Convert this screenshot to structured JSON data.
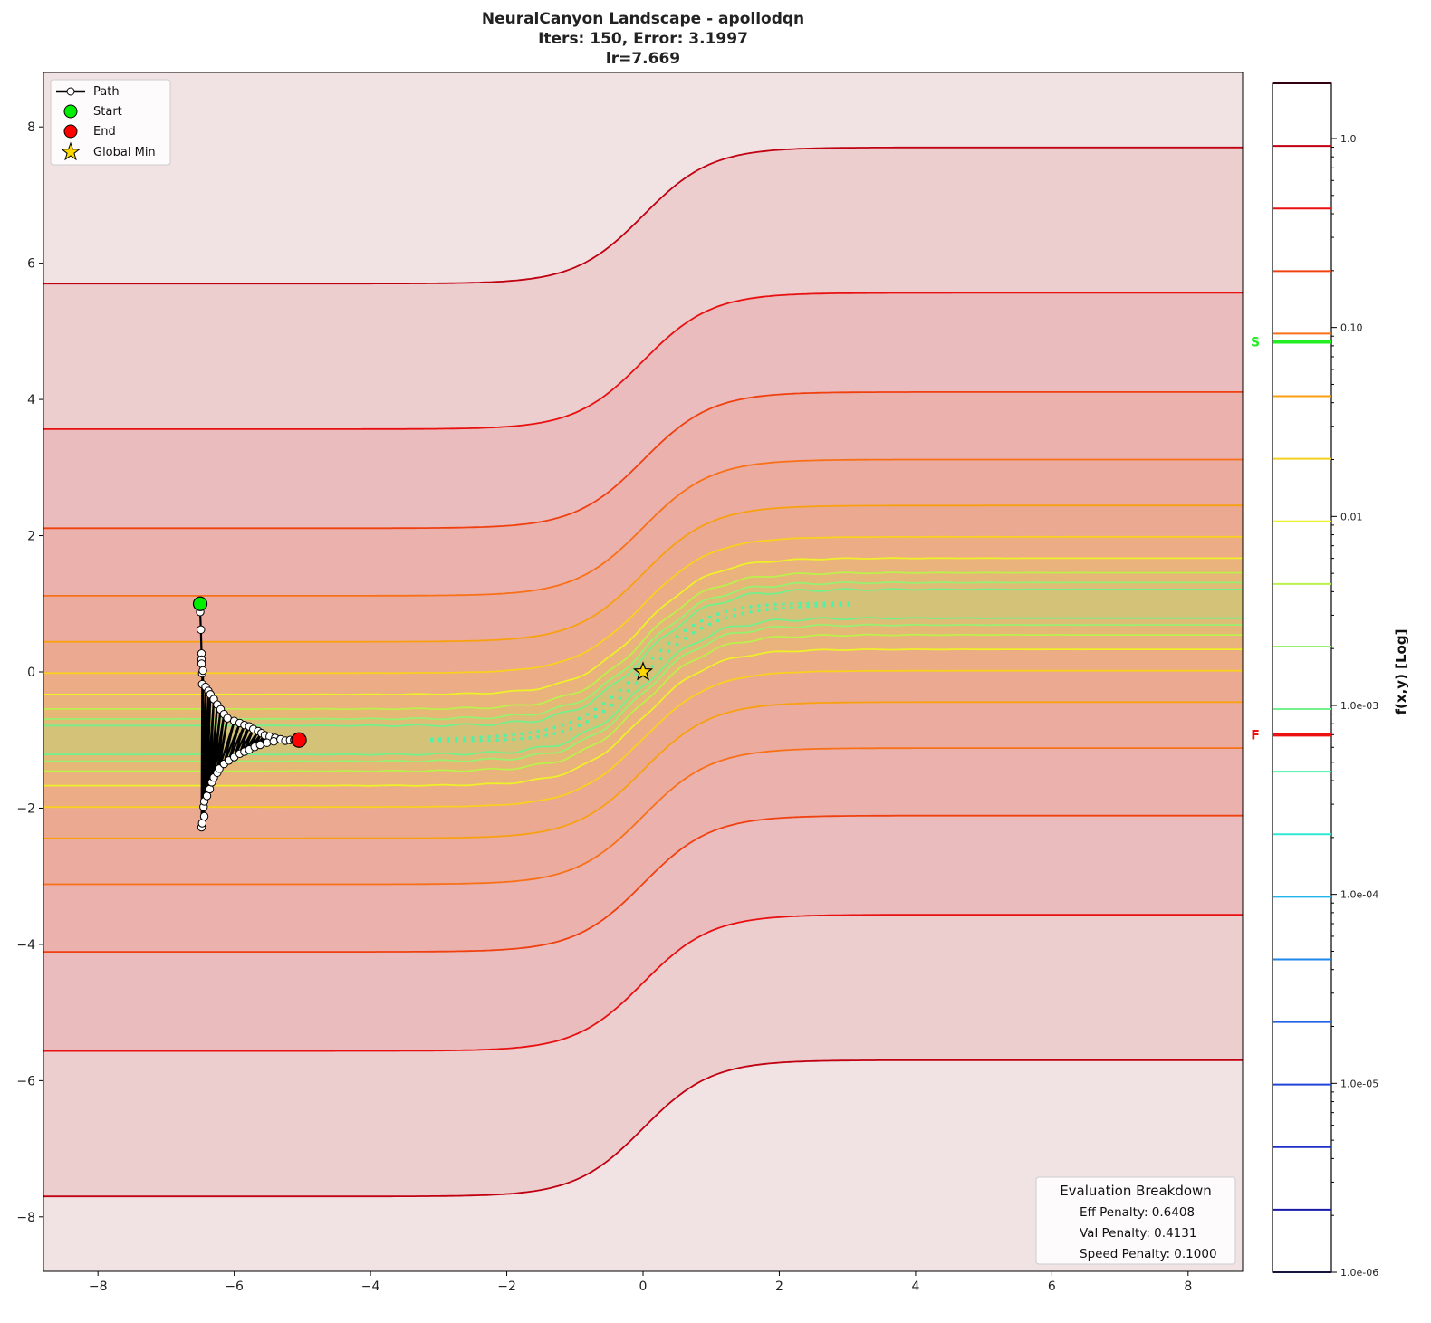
{
  "chart_data": {
    "type": "contour",
    "title": [
      "NeuralCanyon Landscape - apollodqn",
      "Iters: 150, Error: 3.1997",
      "lr=7.669"
    ],
    "xlim": [
      -8.8,
      8.8
    ],
    "ylim": [
      -8.8,
      8.8
    ],
    "xticks": [
      -8,
      -6,
      -4,
      -2,
      0,
      2,
      4,
      6,
      8
    ],
    "yticks": [
      -8,
      -6,
      -4,
      -2,
      0,
      2,
      4,
      6,
      8
    ],
    "xtick_labels": [
      "−8",
      "−6",
      "−4",
      "−2",
      "0",
      "2",
      "4",
      "6",
      "8"
    ],
    "ytick_labels": [
      "−8",
      "−6",
      "−4",
      "−2",
      "0",
      "2",
      "4",
      "6",
      "8"
    ],
    "grid": false,
    "contour_levels": {
      "scale": "log",
      "min": 1e-06,
      "max": 1.96,
      "count": 20
    },
    "level_colors": [
      "#14143c",
      "#1a1aa8",
      "#1e2fc8",
      "#2045d8",
      "#2260e6",
      "#1f86ea",
      "#20b4ea",
      "#30e8d4",
      "#50f2a8",
      "#74f08c",
      "#98f070",
      "#bcf04c",
      "#eef028",
      "#f8d020",
      "#f8a010",
      "#f87018",
      "#f04010",
      "#e81010",
      "#c00010",
      "#300010"
    ],
    "valley": {
      "left_y": -1.0,
      "right_y": 1.0
    },
    "path": {
      "name": "Path",
      "points": [
        [
          -6.5,
          1.0
        ],
        [
          -6.5,
          0.88
        ],
        [
          -6.49,
          0.62
        ],
        [
          -6.48,
          0.27
        ],
        [
          -6.48,
          0.18
        ],
        [
          -6.48,
          0.12
        ],
        [
          -6.47,
          -0.02
        ],
        [
          -6.47,
          -0.18
        ],
        [
          -6.48,
          -2.28
        ],
        [
          -6.47,
          -2.22
        ],
        [
          -6.46,
          0.02
        ],
        [
          -6.44,
          -2.12
        ],
        [
          -6.42,
          -0.22
        ],
        [
          -6.45,
          -1.98
        ],
        [
          -6.38,
          -0.28
        ],
        [
          -6.44,
          -1.9
        ],
        [
          -6.35,
          -0.33
        ],
        [
          -6.4,
          -1.82
        ],
        [
          -6.3,
          -0.4
        ],
        [
          -6.36,
          -1.72
        ],
        [
          -6.25,
          -0.48
        ],
        [
          -6.33,
          -1.62
        ],
        [
          -6.2,
          -0.55
        ],
        [
          -6.3,
          -1.55
        ],
        [
          -6.15,
          -0.62
        ],
        [
          -6.25,
          -1.48
        ],
        [
          -6.1,
          -0.68
        ],
        [
          -6.22,
          -1.42
        ],
        [
          -6.0,
          -0.72
        ],
        [
          -6.15,
          -1.35
        ],
        [
          -5.92,
          -0.75
        ],
        [
          -6.08,
          -1.3
        ],
        [
          -5.85,
          -0.78
        ],
        [
          -6.0,
          -1.25
        ],
        [
          -5.78,
          -0.8
        ],
        [
          -5.92,
          -1.2
        ],
        [
          -5.72,
          -0.84
        ],
        [
          -5.85,
          -1.17
        ],
        [
          -5.65,
          -0.87
        ],
        [
          -5.78,
          -1.14
        ],
        [
          -5.6,
          -0.9
        ],
        [
          -5.7,
          -1.1
        ],
        [
          -5.55,
          -0.93
        ],
        [
          -5.62,
          -1.07
        ],
        [
          -5.48,
          -0.95
        ],
        [
          -5.52,
          -1.04
        ],
        [
          -5.4,
          -0.97
        ],
        [
          -5.42,
          -1.02
        ],
        [
          -5.32,
          -0.99
        ],
        [
          -5.25,
          -1.01
        ],
        [
          -5.18,
          -1.0
        ],
        [
          -5.12,
          -1.0
        ],
        [
          -5.05,
          -1.0
        ]
      ]
    },
    "start": {
      "name": "Start",
      "x": -6.5,
      "y": 1.0,
      "color": "#00ee00"
    },
    "end": {
      "name": "End",
      "x": -5.05,
      "y": -1.0,
      "color": "#ff0000"
    },
    "global_min": {
      "name": "Global Min",
      "x": 0,
      "y": 0,
      "color": "#ffd700"
    },
    "legend": {
      "position": "top-left",
      "entries": [
        "Path",
        "Start",
        "End",
        "Global Min"
      ]
    },
    "colorbar": {
      "label": "f(x,y) [Log]",
      "ticks": [
        1e-06,
        1e-05,
        0.0001,
        0.001,
        0.01,
        0.1,
        1.0
      ],
      "tick_labels": [
        "1.0e-06",
        "1.0e-05",
        "1.0e-04",
        "1.0e-03",
        "0.01",
        "0.10",
        "1.0"
      ],
      "markers": [
        {
          "label": "S",
          "value": 0.084,
          "color": "#22ee22"
        },
        {
          "label": "F",
          "value": 0.0007,
          "color": "#ee1111"
        }
      ]
    },
    "breakdown": {
      "title": "Evaluation Breakdown",
      "lines": [
        "Eff Penalty: 0.6408",
        "Val Penalty: 0.4131",
        "Speed Penalty: 0.1000"
      ],
      "position": "bottom-right"
    }
  }
}
